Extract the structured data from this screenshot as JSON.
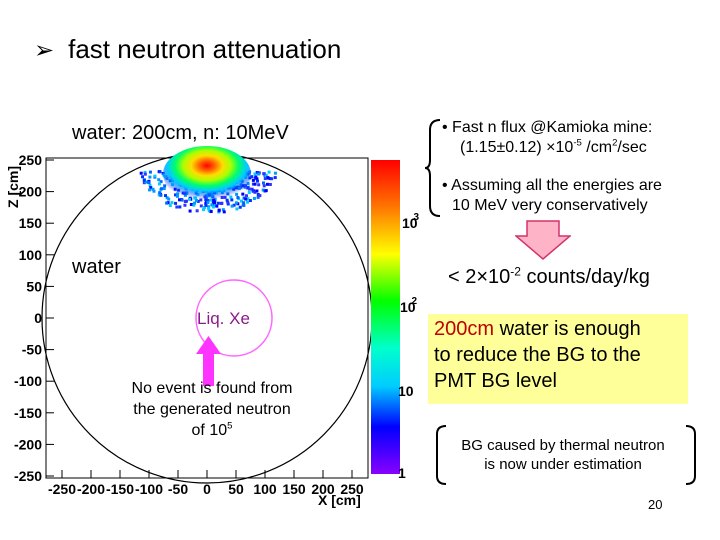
{
  "slide": {
    "title": "fast neutron attenuation",
    "subtitle": "water: 200cm, n: 10MeV",
    "bullet1_line1": "• Fast n flux @Kamioka mine:",
    "bullet1_line2_pre": "(1.15±0.12) ×10",
    "bullet1_exp1": "-5",
    "bullet1_line2_mid": " /cm",
    "bullet1_exp2": "2",
    "bullet1_line2_post": "/sec",
    "bullet2_line1": "• Assuming all the energies are",
    "bullet2_line2": "10 MeV very conservatively",
    "counts_pre": "< 2×10",
    "counts_exp": "-2",
    "counts_post": " counts/day/kg",
    "box_red": "200cm",
    "box_line1_rest": " water is enough",
    "box_line2": "to reduce the BG to the",
    "box_line3": "PMT BG level",
    "thermal_line1": "BG caused by thermal neutron",
    "thermal_line2": "is now under estimation",
    "page_number": "20"
  },
  "plot": {
    "water_label": "water",
    "liqxe_label": "Liq. Xe",
    "note_line1": "No event is found from",
    "note_line2": "the generated neutron",
    "note_line3_pre": "of 10",
    "note_line3_exp": "5"
  },
  "chart_data": {
    "type": "heatmap",
    "xlabel": "X [cm]",
    "ylabel": "Z [cm]",
    "xlim": [
      -250,
      250
    ],
    "ylim": [
      -250,
      250
    ],
    "x_ticks": [
      "-250",
      "-200",
      "-150",
      "-100",
      "-50",
      "0",
      "50",
      "100",
      "150",
      "200",
      "250"
    ],
    "y_ticks": [
      "250",
      "200",
      "150",
      "100",
      "50",
      "0",
      "-50",
      "-100",
      "-150",
      "-200",
      "-250"
    ],
    "colorbar_ticks": [
      "10^3",
      "10^2",
      "10",
      "1"
    ],
    "colorbar_scale": "log",
    "colorbar_range": [
      1,
      5000
    ],
    "hotspot": {
      "x": 0,
      "z": 225,
      "peak_count": 3000
    },
    "water_boundary_radius": 200,
    "liqxe_region": {
      "x": 0,
      "z": 0,
      "radius": 25
    },
    "colors": {
      "scale": [
        "#ff00ff",
        "#ff0000",
        "#ff8800",
        "#ffff00",
        "#00ff00",
        "#00ffff",
        "#0000ff",
        "#8800ff"
      ],
      "circle_liqxe": "#ff66ff",
      "arrow": "#ff33ff",
      "hot_red": "#ff0000",
      "box_yellow": "#ffff99",
      "highlight_red": "#c00000"
    }
  }
}
